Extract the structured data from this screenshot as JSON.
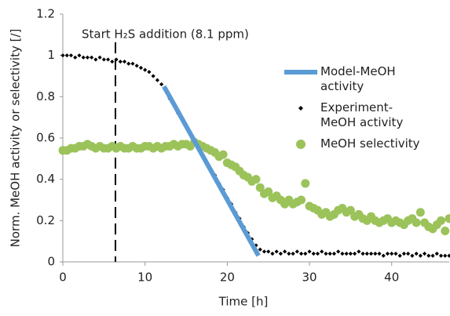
{
  "chart_data": {
    "type": "scatter",
    "xlabel": "Time [h]",
    "ylabel": "Norm. MeOH activity or selectivity [/]",
    "xlim": [
      0,
      47
    ],
    "xticks": [
      0,
      10,
      20,
      30,
      40
    ],
    "ylim": [
      0,
      1.2
    ],
    "yticks": [
      0,
      0.2,
      0.4,
      0.6,
      0.8,
      1,
      1.2
    ],
    "grid": false,
    "annotations": [
      {
        "text": "Start H₂S addition (8.1 ppm)",
        "x": 6.4
      }
    ],
    "series": [
      {
        "name": "Model-MeOH activity",
        "color": "#5b9bd5",
        "marker": "line",
        "x": [
          12.3,
          23.8
        ],
        "values": [
          0.85,
          0.03
        ]
      },
      {
        "name": "Experiment-MeOH activity",
        "color": "#000000",
        "marker": "diamond",
        "x": [
          0,
          0.5,
          1,
          1.5,
          2,
          2.5,
          3,
          3.5,
          4,
          4.5,
          5,
          5.5,
          6,
          6.5,
          7,
          7.5,
          8,
          8.5,
          9,
          9.5,
          10,
          10.5,
          11,
          11.5,
          12,
          12.5,
          13,
          13.5,
          14,
          14.5,
          15,
          15.5,
          16,
          16.5,
          17,
          17.5,
          18,
          18.5,
          19,
          19.5,
          20,
          20.5,
          21,
          21.5,
          22,
          22.5,
          23,
          23.5,
          24,
          24.5,
          25,
          25.5,
          26,
          26.5,
          27,
          27.5,
          28,
          28.5,
          29,
          29.5,
          30,
          30.5,
          31,
          31.5,
          32,
          32.5,
          33,
          33.5,
          34,
          34.5,
          35,
          35.5,
          36,
          36.5,
          37,
          37.5,
          38,
          38.5,
          39,
          39.5,
          40,
          40.5,
          41,
          41.5,
          42,
          42.5,
          43,
          43.5,
          44,
          44.5,
          45,
          45.5,
          46,
          46.5,
          47
        ],
        "values": [
          1.0,
          1.0,
          1.0,
          0.99,
          1.0,
          0.99,
          0.99,
          0.99,
          0.98,
          0.99,
          0.98,
          0.98,
          0.97,
          0.98,
          0.97,
          0.97,
          0.96,
          0.96,
          0.95,
          0.94,
          0.93,
          0.92,
          0.9,
          0.88,
          0.86,
          0.83,
          0.79,
          0.76,
          0.72,
          0.69,
          0.66,
          0.62,
          0.59,
          0.55,
          0.52,
          0.48,
          0.45,
          0.42,
          0.38,
          0.35,
          0.31,
          0.28,
          0.24,
          0.21,
          0.17,
          0.14,
          0.11,
          0.08,
          0.06,
          0.05,
          0.05,
          0.04,
          0.05,
          0.04,
          0.05,
          0.04,
          0.04,
          0.05,
          0.04,
          0.04,
          0.05,
          0.04,
          0.04,
          0.05,
          0.04,
          0.04,
          0.04,
          0.05,
          0.04,
          0.04,
          0.04,
          0.04,
          0.05,
          0.04,
          0.04,
          0.04,
          0.04,
          0.04,
          0.03,
          0.04,
          0.04,
          0.04,
          0.03,
          0.04,
          0.04,
          0.03,
          0.04,
          0.03,
          0.04,
          0.03,
          0.03,
          0.04,
          0.03,
          0.03,
          0.03
        ]
      },
      {
        "name": "MeOH selectivity",
        "color": "#9bc35a",
        "marker": "circle",
        "x": [
          0,
          0.5,
          1,
          1.5,
          2,
          2.5,
          3,
          3.5,
          4,
          4.5,
          5,
          5.5,
          6,
          6.5,
          7,
          7.5,
          8,
          8.5,
          9,
          9.5,
          10,
          10.5,
          11,
          11.5,
          12,
          12.5,
          13,
          13.5,
          14,
          14.5,
          15,
          15.5,
          16,
          16.5,
          17,
          17.5,
          18,
          18.5,
          19,
          19.5,
          20,
          20.5,
          21,
          21.5,
          22,
          22.5,
          23,
          23.5,
          24,
          24.5,
          25,
          25.5,
          26,
          26.5,
          27,
          27.5,
          28,
          28.5,
          29,
          29.5,
          30,
          30.5,
          31,
          31.5,
          32,
          32.5,
          33,
          33.5,
          34,
          34.5,
          35,
          35.5,
          36,
          36.5,
          37,
          37.5,
          38,
          38.5,
          39,
          39.5,
          40,
          40.5,
          41,
          41.5,
          42,
          42.5,
          43,
          43.5,
          44,
          44.5,
          45,
          45.5,
          46,
          46.5,
          47
        ],
        "values": [
          0.54,
          0.54,
          0.55,
          0.55,
          0.56,
          0.56,
          0.57,
          0.56,
          0.55,
          0.56,
          0.55,
          0.55,
          0.56,
          0.55,
          0.56,
          0.55,
          0.55,
          0.56,
          0.55,
          0.55,
          0.56,
          0.56,
          0.55,
          0.56,
          0.55,
          0.56,
          0.56,
          0.57,
          0.56,
          0.57,
          0.57,
          0.56,
          0.58,
          0.57,
          0.56,
          0.55,
          0.54,
          0.53,
          0.51,
          0.52,
          0.48,
          0.47,
          0.46,
          0.44,
          0.42,
          0.41,
          0.39,
          0.4,
          0.36,
          0.33,
          0.34,
          0.31,
          0.32,
          0.3,
          0.28,
          0.3,
          0.28,
          0.29,
          0.3,
          0.38,
          0.27,
          0.26,
          0.25,
          0.23,
          0.24,
          0.22,
          0.23,
          0.25,
          0.26,
          0.24,
          0.25,
          0.22,
          0.23,
          0.21,
          0.2,
          0.22,
          0.2,
          0.19,
          0.2,
          0.21,
          0.19,
          0.2,
          0.19,
          0.18,
          0.2,
          0.21,
          0.19,
          0.24,
          0.19,
          0.17,
          0.16,
          0.18,
          0.2,
          0.15,
          0.21
        ]
      }
    ]
  }
}
